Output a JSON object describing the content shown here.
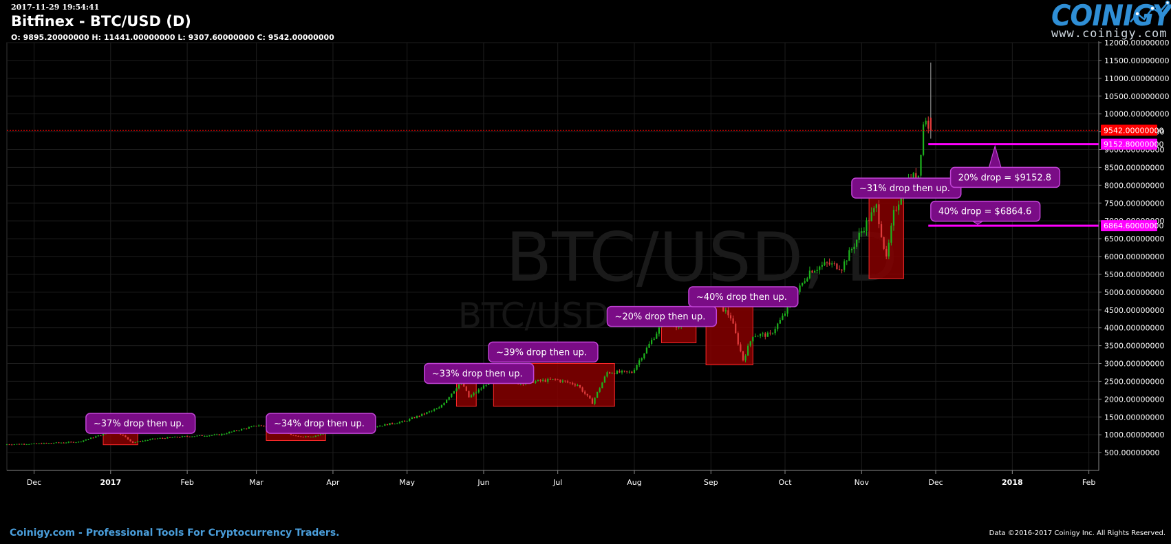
{
  "header": {
    "timestamp": "2017-11-29 19:54:41",
    "title": "Bitfinex - BTC/USD (D)",
    "ohlc": "O: 9895.20000000 H: 11441.00000000 L: 9307.60000000 C: 9542.00000000"
  },
  "logo": {
    "name": "COINIGY",
    "url": "www.coinigy.com",
    "icon": "chart-line-logo-icon"
  },
  "footer": {
    "left": "Coinigy.com - Professional Tools For Cryptocurrency Traders.",
    "right": "Data ©2016-2017 Coinigy Inc. All Rights Reserved."
  },
  "colors": {
    "background": "#000000",
    "up": "#1db31d",
    "down": "#e03b3b",
    "box": "#8b0000",
    "annotation": "#7a0c86",
    "annotation_border": "#c244d6",
    "level": "#ff00ff",
    "last_price": "#ff0000"
  },
  "chart_data": {
    "type": "candlestick",
    "watermark": {
      "main": "BTC/USD, D",
      "sub": "BTC/USD"
    },
    "yaxis": {
      "min": 0,
      "max": 12000,
      "ticks": [
        500,
        1000,
        1500,
        2000,
        2500,
        3000,
        3500,
        4000,
        4500,
        5000,
        5500,
        6000,
        6500,
        7000,
        7500,
        8000,
        8500,
        9000,
        9500,
        10000,
        10500,
        11000,
        11500,
        12000
      ],
      "decimals": 8,
      "side": "right"
    },
    "xaxis": {
      "start": "2016-11-20",
      "end": "2018-02-05",
      "ticks": [
        {
          "date": "2016-12-01",
          "label": "Dec"
        },
        {
          "date": "2017-01-01",
          "label": "2017",
          "bold": true
        },
        {
          "date": "2017-02-01",
          "label": "Feb"
        },
        {
          "date": "2017-03-01",
          "label": "Mar"
        },
        {
          "date": "2017-04-01",
          "label": "Apr"
        },
        {
          "date": "2017-05-01",
          "label": "May"
        },
        {
          "date": "2017-06-01",
          "label": "Jun"
        },
        {
          "date": "2017-07-01",
          "label": "Jul"
        },
        {
          "date": "2017-08-01",
          "label": "Aug"
        },
        {
          "date": "2017-09-01",
          "label": "Sep"
        },
        {
          "date": "2017-10-01",
          "label": "Oct"
        },
        {
          "date": "2017-11-01",
          "label": "Nov"
        },
        {
          "date": "2017-12-01",
          "label": "Dec"
        },
        {
          "date": "2018-01-01",
          "label": "2018",
          "bold": true
        },
        {
          "date": "2018-02-01",
          "label": "Feb"
        }
      ]
    },
    "grid": true,
    "price_anchors": [
      [
        "2016-11-20",
        730
      ],
      [
        "2016-12-01",
        745
      ],
      [
        "2016-12-20",
        800
      ],
      [
        "2017-01-04",
        1120
      ],
      [
        "2017-01-11",
        780
      ],
      [
        "2017-01-20",
        890
      ],
      [
        "2017-02-01",
        950
      ],
      [
        "2017-02-15",
        1000
      ],
      [
        "2017-03-03",
        1270
      ],
      [
        "2017-03-10",
        1150
      ],
      [
        "2017-03-18",
        950
      ],
      [
        "2017-03-25",
        960
      ],
      [
        "2017-04-01",
        1080
      ],
      [
        "2017-04-15",
        1180
      ],
      [
        "2017-05-01",
        1380
      ],
      [
        "2017-05-15",
        1750
      ],
      [
        "2017-05-24",
        2500
      ],
      [
        "2017-05-27",
        2050
      ],
      [
        "2017-06-01",
        2300
      ],
      [
        "2017-06-11",
        2950
      ],
      [
        "2017-06-16",
        2450
      ],
      [
        "2017-07-01",
        2550
      ],
      [
        "2017-07-10",
        2400
      ],
      [
        "2017-07-16",
        1900
      ],
      [
        "2017-07-22",
        2750
      ],
      [
        "2017-08-01",
        2750
      ],
      [
        "2017-08-05",
        3200
      ],
      [
        "2017-08-14",
        4200
      ],
      [
        "2017-08-20",
        4050
      ],
      [
        "2017-08-28",
        4300
      ],
      [
        "2017-09-02",
        4900
      ],
      [
        "2017-09-10",
        4300
      ],
      [
        "2017-09-15",
        3100
      ],
      [
        "2017-09-19",
        3800
      ],
      [
        "2017-09-26",
        3800
      ],
      [
        "2017-10-01",
        4300
      ],
      [
        "2017-10-12",
        5600
      ],
      [
        "2017-10-19",
        5800
      ],
      [
        "2017-10-25",
        5700
      ],
      [
        "2017-11-01",
        6600
      ],
      [
        "2017-11-08",
        7400
      ],
      [
        "2017-11-12",
        5900
      ],
      [
        "2017-11-15",
        7200
      ],
      [
        "2017-11-20",
        8100
      ],
      [
        "2017-11-25",
        8300
      ],
      [
        "2017-11-27",
        9700
      ],
      [
        "2017-11-28",
        9895
      ],
      [
        "2017-11-29",
        9542
      ]
    ],
    "last_candle": {
      "date": "2017-11-29",
      "open": 9895.2,
      "high": 11441.0,
      "low": 9307.6,
      "close": 9542.0
    },
    "current_price": {
      "value": 9542.0,
      "label": "9542.00000000"
    },
    "levels": [
      {
        "value": 9152.8,
        "label": "9152.80000000",
        "from": "2017-11-28"
      },
      {
        "value": 6864.6,
        "label": "6864.60000000",
        "from": "2017-11-28"
      }
    ],
    "boxes": [
      {
        "start": "2016-12-29",
        "end": "2017-01-12",
        "top": 1200,
        "bottom": 720
      },
      {
        "start": "2017-03-05",
        "end": "2017-03-29",
        "top": 1330,
        "bottom": 840
      },
      {
        "start": "2017-05-21",
        "end": "2017-05-29",
        "top": 2700,
        "bottom": 1800
      },
      {
        "start": "2017-06-05",
        "end": "2017-07-24",
        "top": 3000,
        "bottom": 1800
      },
      {
        "start": "2017-08-12",
        "end": "2017-08-26",
        "top": 4550,
        "bottom": 3580
      },
      {
        "start": "2017-08-30",
        "end": "2017-09-18",
        "top": 5000,
        "bottom": 2960
      },
      {
        "start": "2017-11-04",
        "end": "2017-11-18",
        "top": 7850,
        "bottom": 5380
      }
    ],
    "annotations": [
      {
        "text": "~37% drop then up.",
        "date": "2016-12-22",
        "value": 1600,
        "tip_date": "2017-01-02",
        "tip_value": 1220
      },
      {
        "text": "~34% drop then up.",
        "date": "2017-03-05",
        "value": 1600,
        "tip_date": "2017-03-15",
        "tip_value": 1350
      },
      {
        "text": "~33% drop then up.",
        "date": "2017-05-08",
        "value": 3000,
        "tip_date": "2017-05-20",
        "tip_value": 2720
      },
      {
        "text": "~39% drop then up.",
        "date": "2017-06-03",
        "value": 3600,
        "tip_date": "2017-06-13",
        "tip_value": 3020
      },
      {
        "text": "~20% drop then up.",
        "date": "2017-07-21",
        "value": 4600,
        "tip_date": "2017-08-10",
        "tip_value": 4450
      },
      {
        "text": "~40% drop then up.",
        "date": "2017-08-23",
        "value": 5150,
        "tip_date": "2017-09-07",
        "tip_value": 5020
      },
      {
        "text": "~31% drop then up.",
        "date": "2017-10-28",
        "value": 8200,
        "tip_date": "2017-11-06",
        "tip_value": 7880
      },
      {
        "text": "20% drop = $9152.8",
        "date": "2017-12-07",
        "value": 8500,
        "tip_date": "2017-12-25",
        "tip_value": 9152.8,
        "tip_above": true
      },
      {
        "text": "40% drop = $6864.6",
        "date": "2017-11-29",
        "value": 7550,
        "tip_date": "2017-12-18",
        "tip_value": 6864.6,
        "tip_below": true
      }
    ]
  }
}
